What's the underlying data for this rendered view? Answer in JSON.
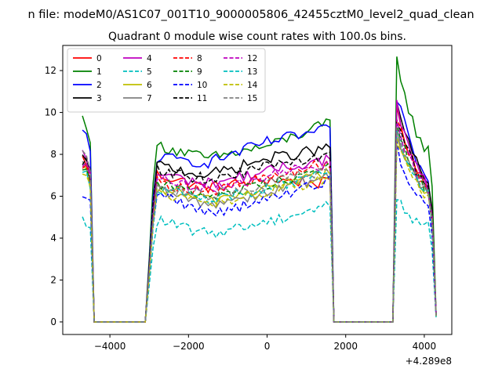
{
  "figure": {
    "suptitle": "n file: modeM0/AS1C07_001T10_9000005806_42455cztM0_level2_quad_clean",
    "title": "Quadrant 0 module wise count rates with 100.0s bins.",
    "x_offset_label": "+4.289e8"
  },
  "chart_data": {
    "type": "line",
    "title": "Quadrant 0 module wise count rates with 100.0s bins.",
    "xlabel": "",
    "ylabel": "",
    "x_offset": 428900000,
    "xlim": [
      -5200,
      4700
    ],
    "ylim": [
      -0.6,
      13.2
    ],
    "xticks": [
      -4000,
      -2000,
      0,
      2000,
      4000
    ],
    "xtick_labels": [
      "−4000",
      "−2000",
      "0",
      "2000",
      "4000"
    ],
    "yticks": [
      0,
      2,
      4,
      6,
      8,
      10,
      12
    ],
    "ytick_labels": [
      "0",
      "2",
      "4",
      "6",
      "8",
      "10",
      "12"
    ],
    "grid": false,
    "legend": {
      "location": "upper left",
      "columns": 4
    },
    "segments": [
      {
        "start": -4700,
        "step": 100,
        "count": 16
      },
      {
        "start": -3100,
        "step": 100,
        "count": 48
      },
      {
        "start": 1700,
        "step": 100,
        "count": 16
      },
      {
        "start": 3300,
        "step": 100,
        "count": 11
      }
    ],
    "segment_profiles": [
      [
        1,
        0.98,
        0.9,
        0,
        0,
        0,
        0,
        0,
        0,
        0,
        0,
        0,
        0,
        0,
        0,
        0
      ],
      [
        0,
        0.35,
        0.75,
        1,
        1,
        1,
        1,
        1,
        1,
        1,
        1,
        1,
        1,
        1,
        1,
        1,
        1,
        1,
        1,
        1,
        1,
        1,
        1,
        1,
        1,
        1,
        1,
        1,
        1,
        1,
        1,
        1,
        1,
        1,
        1,
        1,
        1,
        1,
        1,
        1,
        1,
        1,
        1,
        1,
        1,
        1,
        1,
        1
      ],
      [
        0,
        0,
        0,
        0,
        0,
        0,
        0,
        0,
        0,
        0,
        0,
        0,
        0,
        0,
        0,
        0
      ],
      [
        1,
        1,
        1,
        1,
        1,
        1,
        1,
        1,
        1,
        0.8,
        0.05
      ]
    ],
    "series": [
      {
        "name": "0",
        "color": "#ff0000",
        "dashed": false,
        "levels": [
          [
            7.8
          ],
          [
            7.2,
            6.4,
            6.8,
            6.6
          ],
          [
            0
          ],
          [
            10.3,
            9.2,
            8.5,
            7.8,
            7.2,
            6.8,
            6.5,
            6.2,
            6.0
          ]
        ]
      },
      {
        "name": "1",
        "color": "#008000",
        "dashed": false,
        "levels": [
          [
            9.7
          ],
          [
            8.6,
            7.8,
            8.4,
            9.5
          ],
          [
            0
          ],
          [
            12.5,
            11.5,
            10.5,
            9.8,
            9.0,
            8.5,
            8.3,
            8.0,
            7.8
          ]
        ]
      },
      {
        "name": "2",
        "color": "#0000ff",
        "dashed": false,
        "levels": [
          [
            9.0
          ],
          [
            7.9,
            7.6,
            8.6,
            9.2
          ],
          [
            0
          ],
          [
            10.7,
            10.0,
            9.0,
            8.3,
            7.8,
            7.2,
            6.8,
            6.4,
            6.2
          ]
        ]
      },
      {
        "name": "3",
        "color": "#000000",
        "dashed": false,
        "levels": [
          [
            7.8
          ],
          [
            7.6,
            7.0,
            7.8,
            8.3
          ],
          [
            0
          ],
          [
            10.5,
            9.6,
            8.8,
            8.2,
            7.6,
            7.1,
            6.8,
            6.5,
            6.3
          ]
        ]
      },
      {
        "name": "4",
        "color": "#bf00bf",
        "dashed": false,
        "levels": [
          [
            8.0
          ],
          [
            7.2,
            6.6,
            7.2,
            7.8
          ],
          [
            0
          ],
          [
            10.4,
            9.4,
            8.6,
            8.0,
            7.4,
            7.0,
            6.6,
            6.3,
            6.1
          ]
        ]
      },
      {
        "name": "5",
        "color": "#00bfbf",
        "dashed": true,
        "levels": [
          [
            4.8
          ],
          [
            5.0,
            4.2,
            4.8,
            5.6
          ],
          [
            0
          ],
          [
            6.0,
            5.6,
            5.2,
            5.0,
            4.8,
            4.7,
            4.6,
            4.5,
            4.4
          ]
        ]
      },
      {
        "name": "6",
        "color": "#bfbf00",
        "dashed": false,
        "levels": [
          [
            7.2
          ],
          [
            6.6,
            5.8,
            6.4,
            7.2
          ],
          [
            0
          ],
          [
            8.8,
            8.2,
            7.6,
            7.2,
            6.8,
            6.5,
            6.2,
            6.0,
            5.8
          ]
        ]
      },
      {
        "name": "7",
        "color": "#808080",
        "dashed": false,
        "levels": [
          [
            7.4
          ],
          [
            6.4,
            5.6,
            6.2,
            7.0
          ],
          [
            0
          ],
          [
            9.0,
            8.4,
            7.8,
            7.3,
            6.9,
            6.5,
            6.2,
            6.0,
            5.8
          ]
        ]
      },
      {
        "name": "8",
        "color": "#ff0000",
        "dashed": true,
        "levels": [
          [
            7.6
          ],
          [
            6.8,
            6.2,
            6.9,
            7.6
          ],
          [
            0
          ],
          [
            9.8,
            9.0,
            8.3,
            7.8,
            7.3,
            6.9,
            6.6,
            6.3,
            6.1
          ]
        ]
      },
      {
        "name": "9",
        "color": "#008000",
        "dashed": true,
        "levels": [
          [
            7.5
          ],
          [
            6.8,
            6.0,
            6.6,
            7.4
          ],
          [
            0
          ],
          [
            9.4,
            8.6,
            8.0,
            7.5,
            7.0,
            6.7,
            6.4,
            6.1,
            5.9
          ]
        ]
      },
      {
        "name": "10",
        "color": "#0000ff",
        "dashed": true,
        "levels": [
          [
            6.2
          ],
          [
            6.4,
            5.2,
            5.8,
            6.8
          ],
          [
            0
          ],
          [
            8.4,
            7.6,
            7.0,
            6.6,
            6.2,
            5.8,
            5.5,
            5.3,
            5.1
          ]
        ]
      },
      {
        "name": "11",
        "color": "#000000",
        "dashed": true,
        "levels": [
          [
            7.7
          ],
          [
            7.4,
            6.8,
            7.4,
            8.0
          ],
          [
            0
          ],
          [
            9.6,
            8.9,
            8.2,
            7.7,
            7.2,
            6.9,
            6.6,
            6.3,
            6.1
          ]
        ]
      },
      {
        "name": "12",
        "color": "#bf00bf",
        "dashed": true,
        "levels": [
          [
            7.6
          ],
          [
            6.9,
            6.3,
            7.0,
            7.6
          ],
          [
            0
          ],
          [
            9.6,
            8.8,
            8.1,
            7.6,
            7.1,
            6.8,
            6.5,
            6.2,
            6.0
          ]
        ]
      },
      {
        "name": "13",
        "color": "#00bfbf",
        "dashed": true,
        "levels": [
          [
            7.3
          ],
          [
            6.5,
            5.8,
            6.4,
            7.1
          ],
          [
            0
          ],
          [
            8.9,
            8.2,
            7.6,
            7.1,
            6.7,
            6.4,
            6.1,
            5.9,
            5.7
          ]
        ]
      },
      {
        "name": "14",
        "color": "#bfbf00",
        "dashed": true,
        "levels": [
          [
            7.2
          ],
          [
            6.3,
            5.6,
            6.2,
            6.9
          ],
          [
            0
          ],
          [
            8.6,
            8.0,
            7.4,
            7.0,
            6.6,
            6.3,
            6.0,
            5.8,
            5.6
          ]
        ]
      },
      {
        "name": "15",
        "color": "#808080",
        "dashed": true,
        "levels": [
          [
            8.3
          ],
          [
            6.7,
            6.0,
            6.6,
            7.3
          ],
          [
            0
          ],
          [
            9.2,
            8.5,
            7.9,
            7.4,
            7.0,
            6.6,
            6.3,
            6.0,
            5.8
          ]
        ]
      }
    ]
  }
}
